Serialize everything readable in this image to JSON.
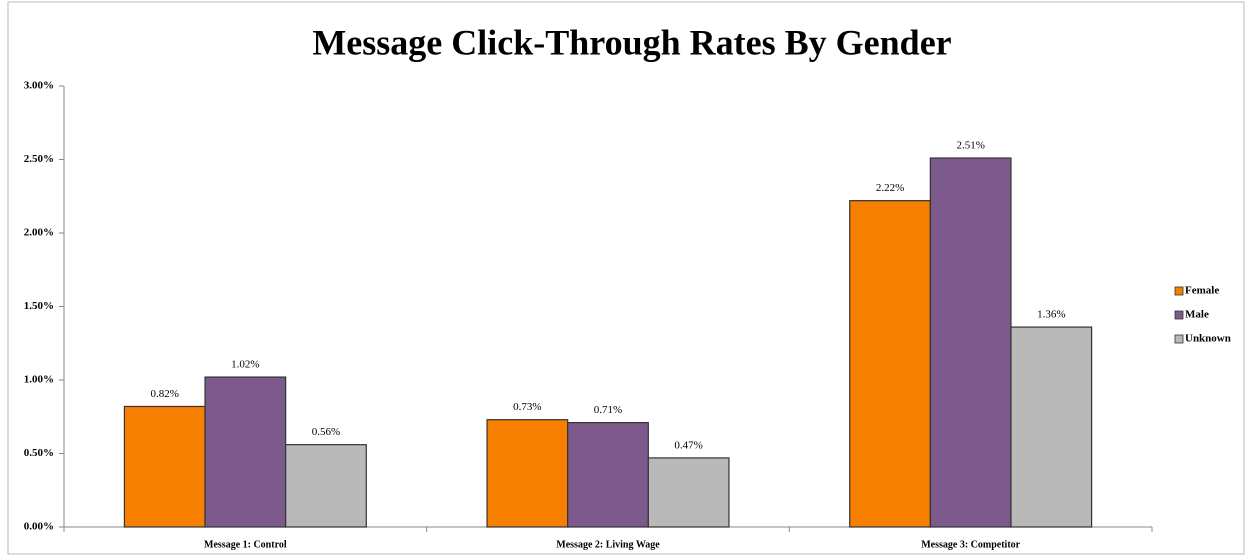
{
  "chart_data": {
    "type": "bar",
    "title": "Message Click-Through Rates By Gender",
    "categories": [
      "Message 1: Control",
      "Message 2: Living Wage",
      "Message 3: Competitor"
    ],
    "series": [
      {
        "name": "Female",
        "color": "#f67f00",
        "values": [
          0.82,
          0.73,
          2.22
        ],
        "value_labels": [
          "0.82%",
          "0.73%",
          "2.22%"
        ]
      },
      {
        "name": "Male",
        "color": "#7d5a8c",
        "values": [
          1.02,
          0.71,
          2.51
        ],
        "value_labels": [
          "1.02%",
          "0.71%",
          "2.51%"
        ]
      },
      {
        "name": "Unknown",
        "color": "#b9b9b9",
        "values": [
          0.56,
          0.47,
          1.36
        ],
        "value_labels": [
          "0.56%",
          "0.47%",
          "1.36%"
        ]
      }
    ],
    "ylim": [
      0,
      3
    ],
    "yticks": [
      {
        "value": 0,
        "label": "0.00%"
      },
      {
        "value": 0.5,
        "label": "0.50%"
      },
      {
        "value": 1,
        "label": "1.00%"
      },
      {
        "value": 1.5,
        "label": "1.50%"
      },
      {
        "value": 2,
        "label": "2.00%"
      },
      {
        "value": 2.5,
        "label": "2.50%"
      },
      {
        "value": 3,
        "label": "3.00%"
      }
    ],
    "legend": "right"
  }
}
